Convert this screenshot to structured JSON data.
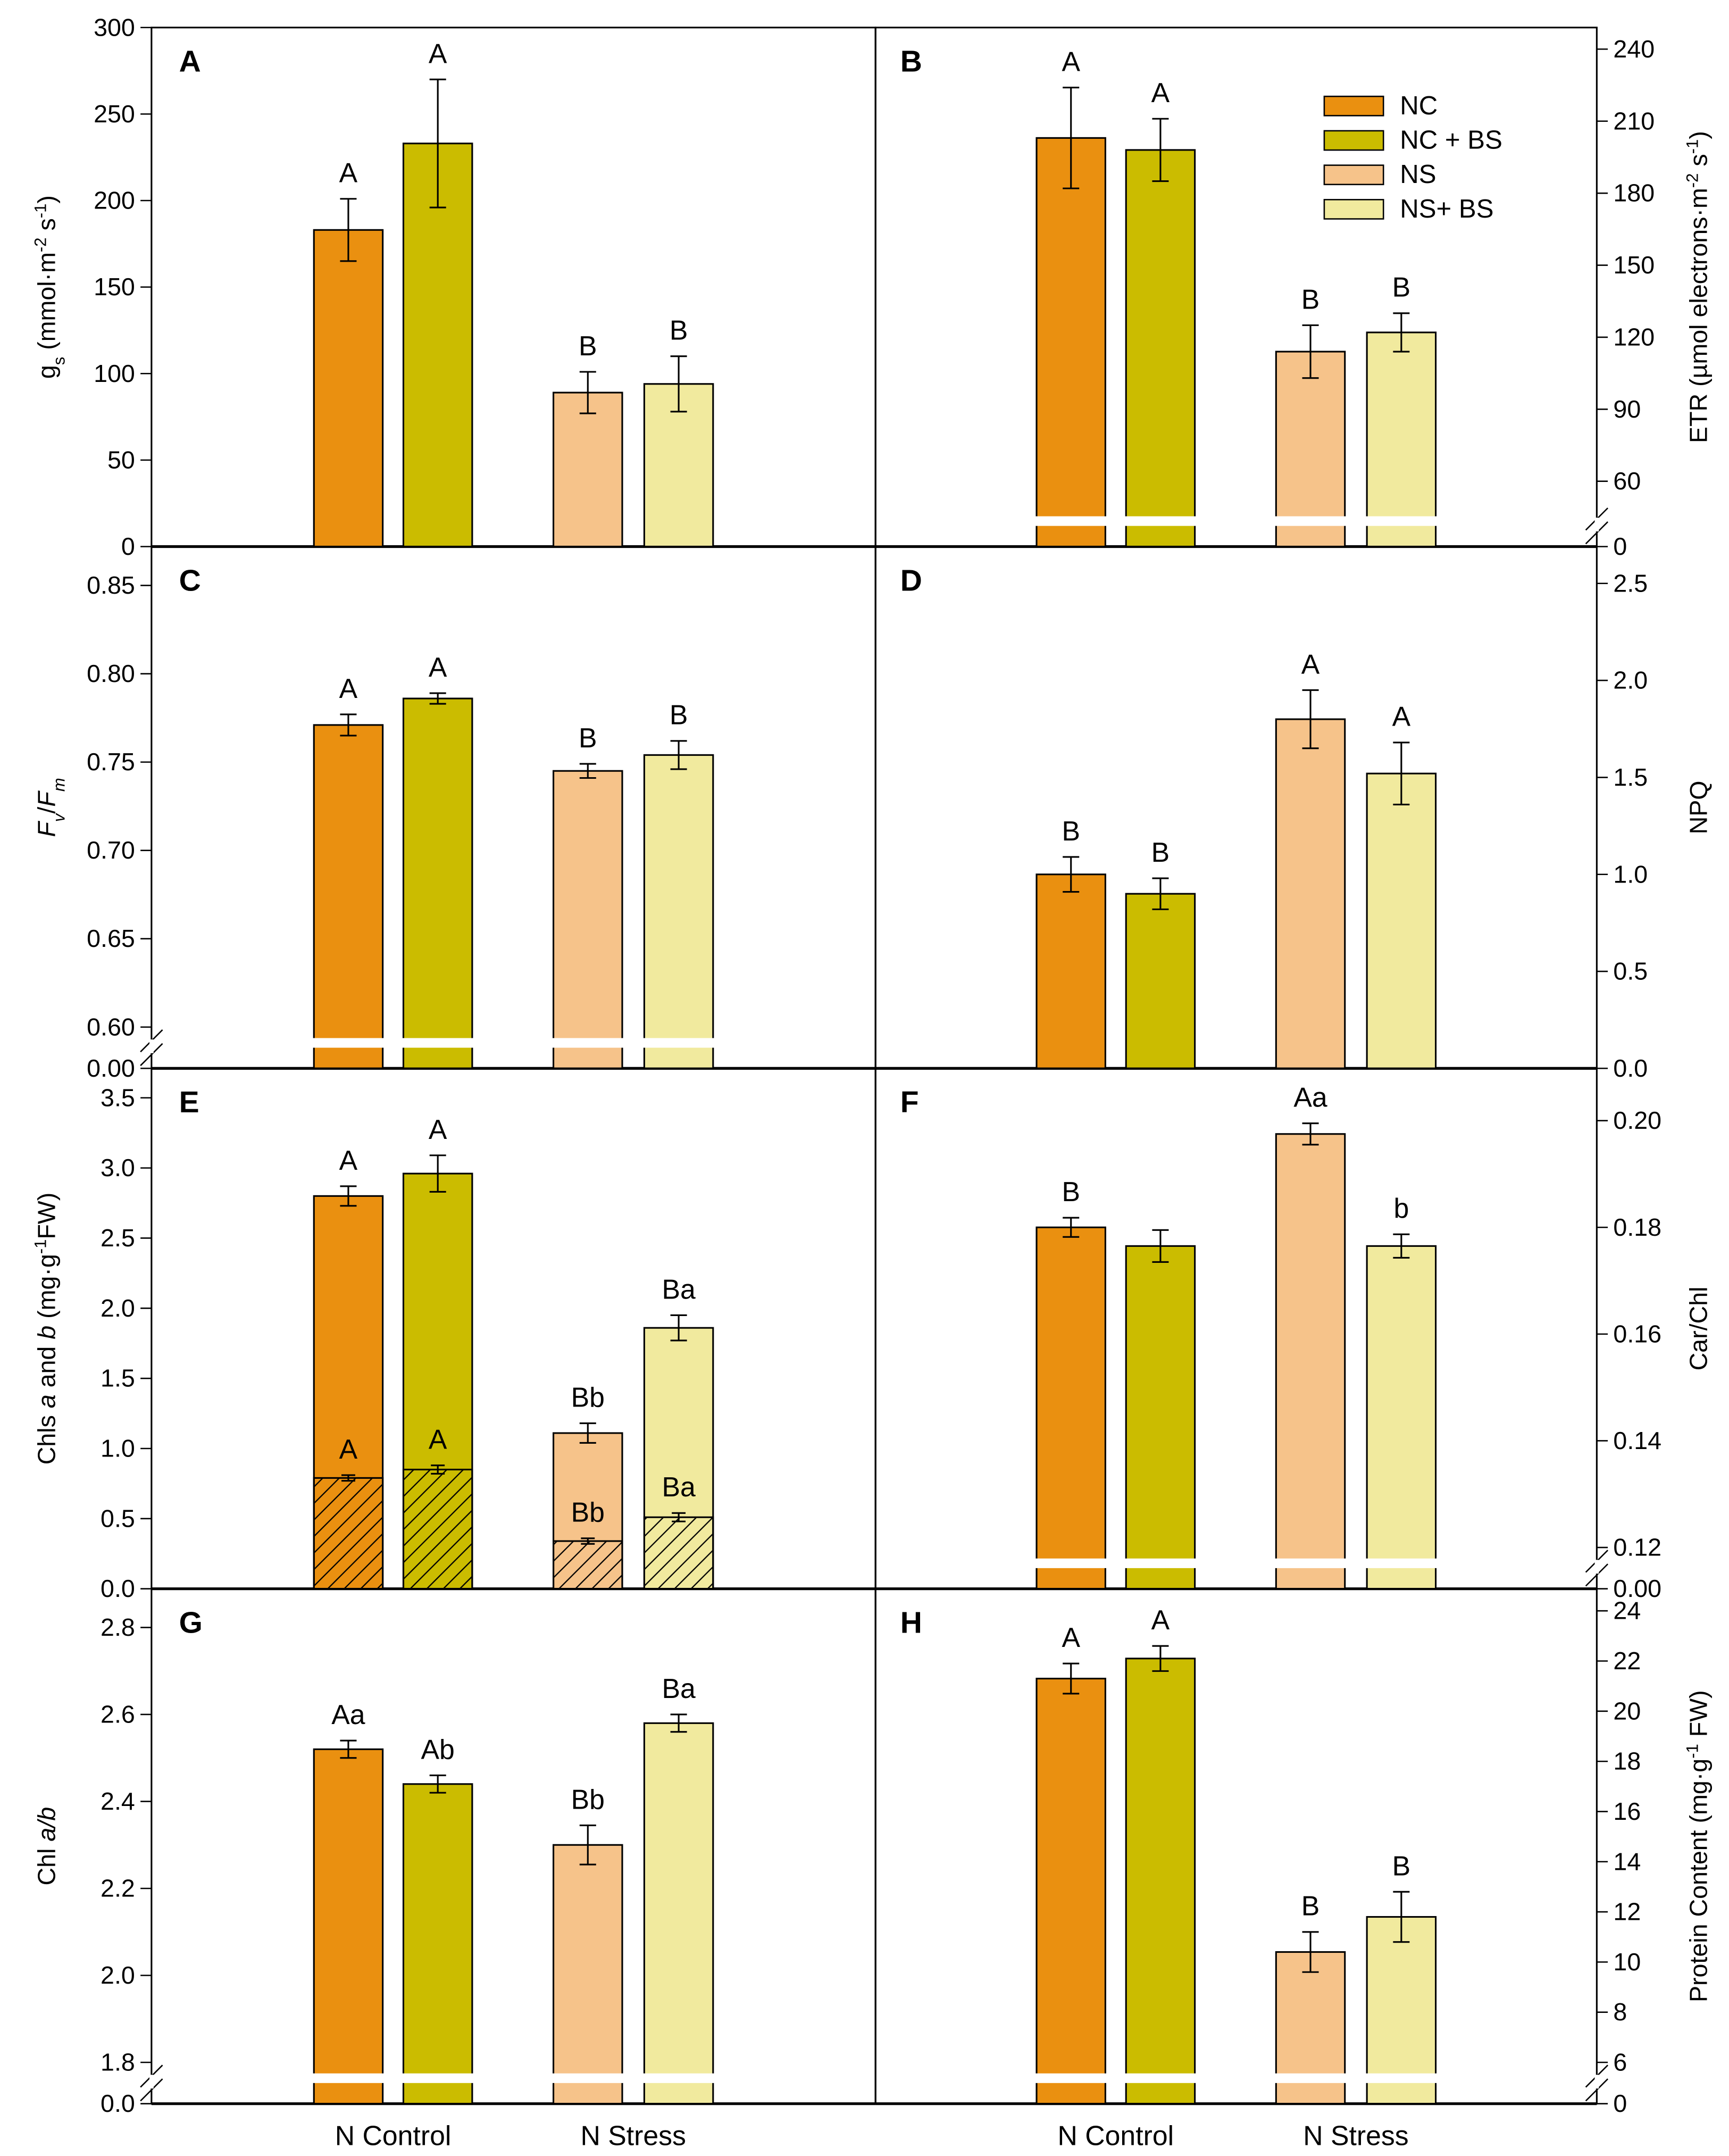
{
  "chart_data": {
    "type": "bar",
    "layout": "4x2 grid of grouped bar panels",
    "categories": [
      "N Control",
      "N Stress"
    ],
    "series_names": [
      "NC",
      "NC + BS",
      "NS",
      "NS+ BS"
    ],
    "colors": {
      "NC": "#EA9010",
      "NC + BS": "#CBBC00",
      "NS": "#F6C38A",
      "NS+ BS": "#F1EA9E"
    },
    "legend": {
      "location": "panel B, top-right",
      "entries": [
        "NC",
        "NC + BS",
        "NS",
        "NS+ BS"
      ]
    },
    "panels": [
      {
        "id": "A",
        "side": "left",
        "ylabel": [
          {
            "t": "g"
          },
          {
            "t": "s",
            "sub": true
          },
          {
            "t": " (mmol·m"
          },
          {
            "t": "-2",
            "sup": true
          },
          {
            "t": " s"
          },
          {
            "t": "-1",
            "sup": true
          },
          {
            "t": ")"
          }
        ],
        "ylim": [
          0,
          300
        ],
        "ticks": [
          "0",
          "50",
          "100",
          "150",
          "200",
          "250",
          "300"
        ],
        "broken": false,
        "values": [
          183,
          233,
          89,
          94
        ],
        "errors": [
          18,
          37,
          12,
          16
        ],
        "letters": [
          "A",
          "A",
          "B",
          "B"
        ]
      },
      {
        "id": "B",
        "side": "right",
        "ylabel": [
          {
            "t": "ETR (µmol electrons·m"
          },
          {
            "t": "-2",
            "sup": true
          },
          {
            "t": " s"
          },
          {
            "t": "-1",
            "sup": true
          },
          {
            "t": ")"
          }
        ],
        "ylim": [
          50,
          249
        ],
        "ticks": [
          "60",
          "90",
          "120",
          "150",
          "180",
          "210",
          "240"
        ],
        "broken": true,
        "zero_tick": "0",
        "values": [
          203,
          198,
          114,
          122
        ],
        "errors": [
          21,
          13,
          11,
          8
        ],
        "letters": [
          "A",
          "A",
          "B",
          "B"
        ]
      },
      {
        "id": "C",
        "side": "left",
        "ylabel": [
          {
            "t": "F",
            "i": true
          },
          {
            "t": "v",
            "sub": true,
            "i": true
          },
          {
            "t": "/"
          },
          {
            "t": "F",
            "i": true
          },
          {
            "t": "m",
            "sub": true,
            "i": true
          }
        ],
        "ylim": [
          0.6,
          0.872
        ],
        "ticks": [
          "0.60",
          "0.65",
          "0.70",
          "0.75",
          "0.80",
          "0.85"
        ],
        "broken": true,
        "zero_tick": "0.00",
        "values": [
          0.771,
          0.786,
          0.745,
          0.754
        ],
        "errors": [
          0.006,
          0.003,
          0.004,
          0.008
        ],
        "letters": [
          "A",
          "A",
          "B",
          "B"
        ]
      },
      {
        "id": "D",
        "side": "right",
        "ylabel": [
          {
            "t": "NPQ"
          }
        ],
        "ylim": [
          0,
          2.69
        ],
        "ticks": [
          "0.0",
          "0.5",
          "1.0",
          "1.5",
          "2.0",
          "2.5"
        ],
        "broken": false,
        "values": [
          1.0,
          0.9,
          1.8,
          1.52
        ],
        "errors": [
          0.09,
          0.08,
          0.15,
          0.16
        ],
        "letters": [
          "B",
          "B",
          "A",
          "A"
        ]
      },
      {
        "id": "E",
        "side": "left",
        "ylabel": [
          {
            "t": "Chls "
          },
          {
            "t": "a",
            "i": true
          },
          {
            "t": " and "
          },
          {
            "t": "b",
            "i": true
          },
          {
            "t": " (mg·g"
          },
          {
            "t": "-1",
            "sup": true
          },
          {
            "t": "FW)"
          }
        ],
        "ylim": [
          0,
          3.71
        ],
        "ticks": [
          "0.0",
          "0.5",
          "1.0",
          "1.5",
          "2.0",
          "2.5",
          "3.0",
          "3.5"
        ],
        "broken": false,
        "values": [
          2.8,
          2.96,
          1.11,
          1.86
        ],
        "errors": [
          0.07,
          0.13,
          0.07,
          0.09
        ],
        "letters": [
          "A",
          "A",
          "Bb",
          "Ba"
        ],
        "stacked_lower": {
          "name": "Chl b (hatched)",
          "values": [
            0.79,
            0.85,
            0.34,
            0.51
          ],
          "errors": [
            0.02,
            0.03,
            0.02,
            0.03
          ],
          "letters": [
            "A",
            "A",
            "Bb",
            "Ba"
          ]
        }
      },
      {
        "id": "F",
        "side": "right",
        "ylabel": [
          {
            "t": "Car/Chl"
          }
        ],
        "ylim": [
          0.12,
          0.2098
        ],
        "ticks": [
          "0.12",
          "0.14",
          "0.16",
          "0.18",
          "0.20"
        ],
        "broken": true,
        "zero_tick": "0.00",
        "values": [
          0.18,
          0.1765,
          0.1975,
          0.1765
        ],
        "errors": [
          0.0018,
          0.003,
          0.002,
          0.0022
        ],
        "letters": [
          "B",
          "",
          "Aa",
          "b"
        ]
      },
      {
        "id": "G",
        "side": "left",
        "ylabel": [
          {
            "t": "Chl "
          },
          {
            "t": "a/b",
            "i": true
          }
        ],
        "ylim": [
          1.8,
          2.889
        ],
        "ticks": [
          "1.8",
          "2.0",
          "2.2",
          "2.4",
          "2.6",
          "2.8"
        ],
        "broken": true,
        "zero_tick": "0.0",
        "values": [
          2.52,
          2.44,
          2.3,
          2.58
        ],
        "errors": [
          0.02,
          0.02,
          0.045,
          0.02
        ],
        "letters": [
          "Aa",
          "Ab",
          "Bb",
          "Ba"
        ]
      },
      {
        "id": "H",
        "side": "right",
        "ylabel": [
          {
            "t": "Protein Content (mg·g"
          },
          {
            "t": "-1",
            "sup": true
          },
          {
            "t": " FW)"
          }
        ],
        "ylim": [
          6,
          24.88
        ],
        "ticks": [
          "6",
          "8",
          "10",
          "12",
          "14",
          "16",
          "18",
          "20",
          "22",
          "24"
        ],
        "broken": true,
        "zero_tick": "0",
        "values": [
          21.3,
          22.1,
          10.4,
          11.8
        ],
        "errors": [
          0.6,
          0.5,
          0.8,
          1.0
        ],
        "letters": [
          "A",
          "A",
          "B",
          "B"
        ]
      }
    ]
  }
}
